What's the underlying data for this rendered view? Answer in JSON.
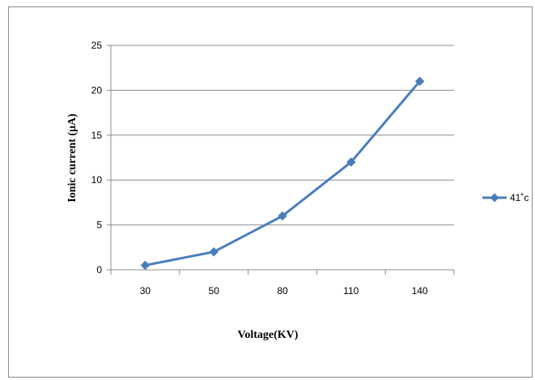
{
  "chart_data": {
    "type": "line",
    "categories": [
      "30",
      "50",
      "80",
      "110",
      "140"
    ],
    "series": [
      {
        "name": "41˚c",
        "values": [
          0.5,
          2,
          6,
          12,
          21
        ],
        "color": "#4a7ebb",
        "marker": "diamond"
      }
    ],
    "xlabel": "Voltage(KV)",
    "ylabel": "Ionic current (μA)",
    "ylim": [
      0,
      25
    ],
    "yticks": [
      0,
      5,
      10,
      15,
      20,
      25
    ],
    "grid": true,
    "legend_position": "right"
  }
}
